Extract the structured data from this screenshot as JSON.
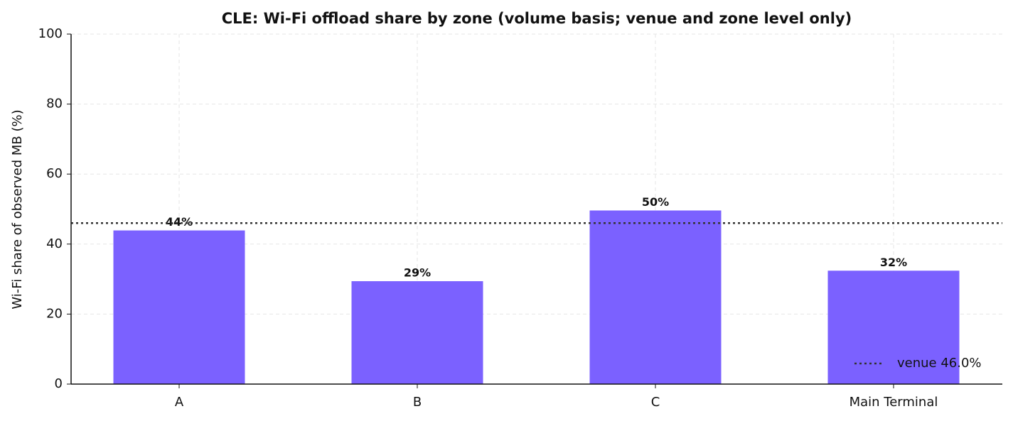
{
  "chart_data": {
    "type": "bar",
    "title": "CLE: Wi-Fi offload share by zone (volume basis; venue and zone level only)",
    "y_label": "Wi-Fi share of observed MB (%)",
    "categories": [
      "A",
      "B",
      "C",
      "Main Terminal"
    ],
    "values": [
      43.9,
      29.4,
      49.6,
      32.4
    ],
    "value_labels": [
      "44%",
      "29%",
      "50%",
      "32%"
    ],
    "color": "#7b61ff",
    "ylim": [
      0,
      100
    ],
    "yticks": [
      0,
      20,
      40,
      60,
      80,
      100
    ],
    "grid": true,
    "reference_line": {
      "value": 46.0,
      "label": "venue 46.0%",
      "color": "#333333",
      "style": "dotted"
    },
    "legend": "lower right"
  }
}
